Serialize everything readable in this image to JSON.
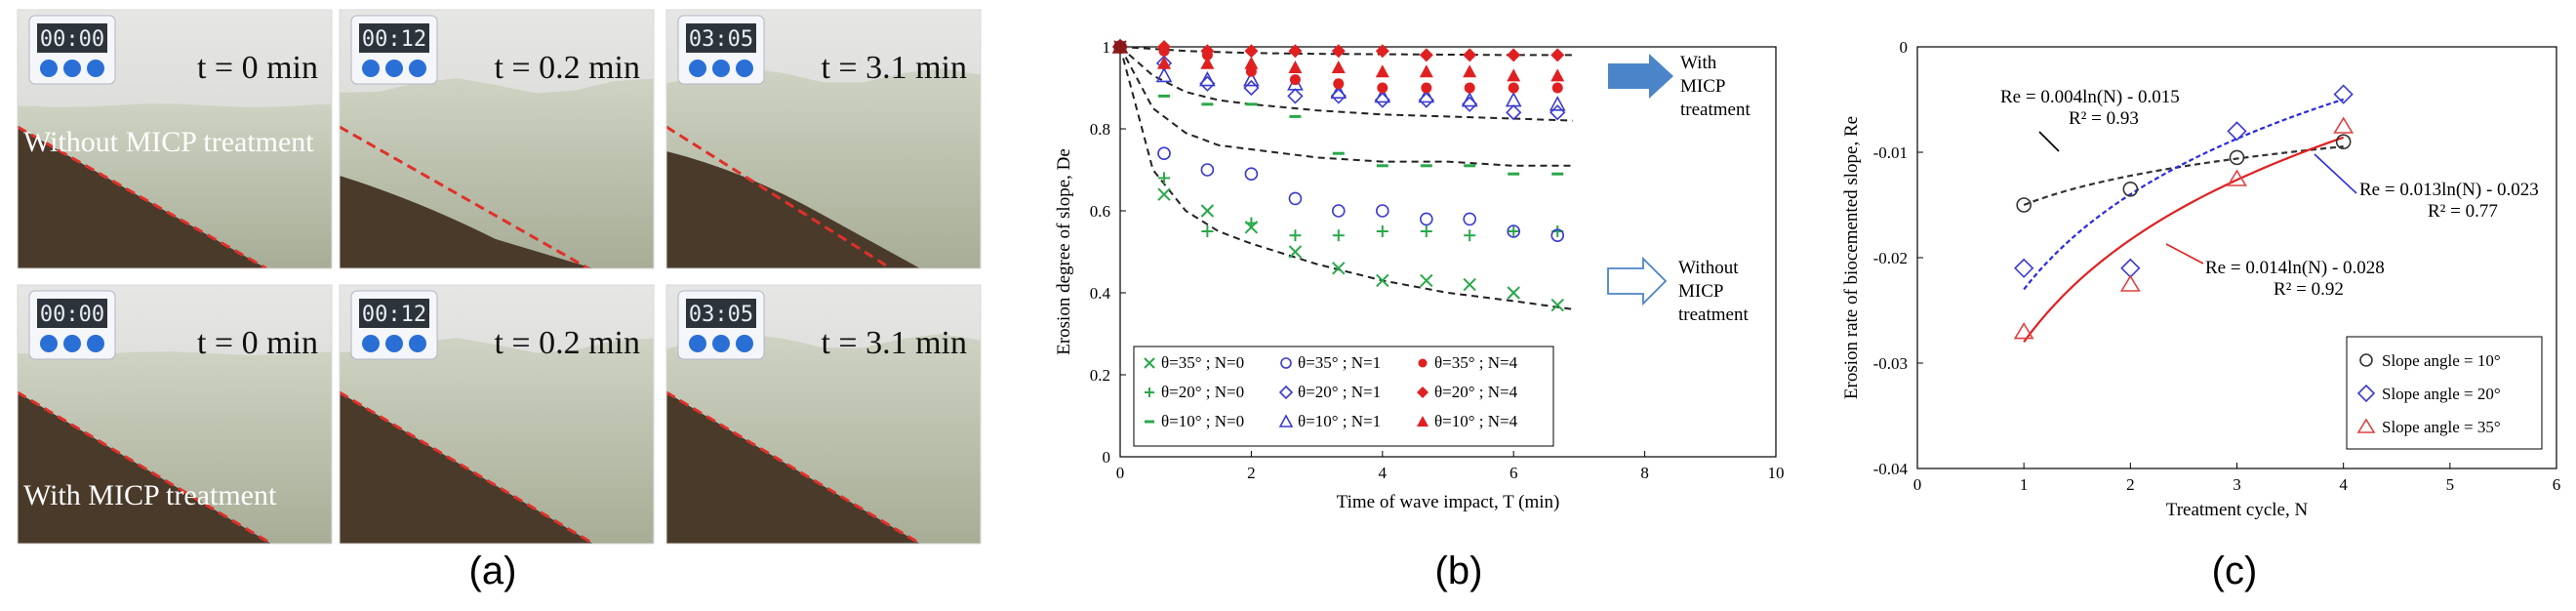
{
  "panels": {
    "a": {
      "label": "(a)"
    },
    "b": {
      "label": "(b)"
    },
    "c": {
      "label": "(c)"
    }
  },
  "photos": {
    "row_captions": [
      "Without MICP treatment",
      "With MICP treatment"
    ],
    "times": [
      "t = 0 min",
      "t = 0.2 min",
      "t = 3.1 min"
    ],
    "timer_displays": [
      "00:00",
      "00:12",
      "03:05"
    ],
    "colors": {
      "water": "#b9bfa9",
      "sediment": "#4a3a2a",
      "slope_line": "#e0302a",
      "timer": "#2a6fd6"
    }
  },
  "chart_data": [
    {
      "id": "b",
      "type": "scatter",
      "title": "",
      "xlabel": "Time of wave impact, T (min)",
      "ylabel": "Erosion degree of slope, De",
      "xlim": [
        0,
        10
      ],
      "ylim": [
        0,
        1
      ],
      "xticks": [
        0,
        2,
        4,
        6,
        8,
        10
      ],
      "yticks": [
        0,
        0.2,
        0.4,
        0.6,
        0.8,
        1
      ],
      "x": [
        0,
        0.67,
        1.33,
        2,
        2.67,
        3.33,
        4,
        4.67,
        5.33,
        6,
        6.67
      ],
      "series": [
        {
          "name": "θ=35° ; N=0",
          "marker": "x",
          "color": "#2aa84a",
          "values": [
            1,
            0.64,
            0.6,
            0.56,
            0.5,
            0.46,
            0.43,
            0.43,
            0.42,
            0.4,
            0.37
          ]
        },
        {
          "name": "θ=20° ; N=0",
          "marker": "plus",
          "color": "#2aa84a",
          "values": [
            1,
            0.68,
            0.55,
            0.57,
            0.54,
            0.54,
            0.55,
            0.55,
            0.54,
            0.55,
            0.55
          ]
        },
        {
          "name": "θ=10° ; N=0",
          "marker": "dash",
          "color": "#2aa84a",
          "values": [
            1,
            0.88,
            0.86,
            0.86,
            0.83,
            0.74,
            0.71,
            0.71,
            0.71,
            0.69,
            0.69
          ]
        },
        {
          "name": "θ=35° ; N=1",
          "marker": "circle",
          "color": "#3a3ad0",
          "values": [
            1,
            0.74,
            0.7,
            0.69,
            0.63,
            0.6,
            0.6,
            0.58,
            0.58,
            0.55,
            0.54
          ]
        },
        {
          "name": "θ=20° ; N=1",
          "marker": "diamond",
          "color": "#3a3ad0",
          "values": [
            1,
            0.96,
            0.91,
            0.9,
            0.88,
            0.88,
            0.87,
            0.87,
            0.86,
            0.84,
            0.84
          ]
        },
        {
          "name": "θ=10° ; N=1",
          "marker": "triangle",
          "color": "#3a3ad0",
          "values": [
            1,
            0.93,
            0.92,
            0.92,
            0.91,
            0.89,
            0.88,
            0.88,
            0.87,
            0.87,
            0.86
          ]
        },
        {
          "name": "θ=35° ; N=4",
          "marker": "filled-circle",
          "color": "#e02020",
          "values": [
            1,
            0.99,
            0.98,
            0.94,
            0.92,
            0.91,
            0.9,
            0.9,
            0.9,
            0.9,
            0.9
          ]
        },
        {
          "name": "θ=20° ; N=4",
          "marker": "filled-diamond",
          "color": "#e02020",
          "values": [
            1,
            1,
            0.99,
            0.99,
            0.99,
            0.99,
            0.99,
            0.98,
            0.98,
            0.98,
            0.98
          ]
        },
        {
          "name": "θ=10° ; N=4",
          "marker": "filled-triangle",
          "color": "#e02020",
          "values": [
            1,
            0.96,
            0.96,
            0.96,
            0.95,
            0.95,
            0.94,
            0.94,
            0.94,
            0.93,
            0.93
          ]
        }
      ],
      "fit_curves": [
        {
          "name": "fit-35-N0",
          "x": [
            0,
            0.5,
            1,
            1.5,
            2,
            3,
            4,
            5,
            6,
            6.9
          ],
          "y": [
            1,
            0.7,
            0.6,
            0.55,
            0.52,
            0.47,
            0.43,
            0.4,
            0.38,
            0.36
          ]
        },
        {
          "name": "fit-20-N0",
          "x": [
            0,
            0.5,
            1,
            1.5,
            2,
            3,
            4,
            5,
            6,
            6.9
          ],
          "y": [
            1,
            0.85,
            0.79,
            0.76,
            0.75,
            0.73,
            0.72,
            0.72,
            0.71,
            0.71
          ]
        },
        {
          "name": "fit-10-N0",
          "x": [
            0,
            0.5,
            1,
            1.5,
            2,
            3,
            4,
            5,
            6,
            6.9
          ],
          "y": [
            1,
            0.93,
            0.89,
            0.87,
            0.86,
            0.845,
            0.835,
            0.83,
            0.825,
            0.82
          ]
        },
        {
          "name": "fit-N4",
          "x": [
            0,
            1,
            2,
            3,
            4,
            5,
            6,
            6.9
          ],
          "y": [
            1,
            0.99,
            0.985,
            0.983,
            0.982,
            0.981,
            0.98,
            0.98
          ]
        }
      ],
      "annotations": [
        {
          "lines": [
            "With",
            "MICP",
            "treatment"
          ],
          "arrow": "filled"
        },
        {
          "lines": [
            "Without",
            "MICP",
            "treatment"
          ],
          "arrow": "outline"
        }
      ],
      "legend_position": "bottom-left"
    },
    {
      "id": "c",
      "type": "scatter",
      "title": "",
      "xlabel": "Treatment cycle, N",
      "ylabel": "Erosion rate of biocemented slope, Re",
      "xlim": [
        0,
        6
      ],
      "ylim": [
        -0.04,
        0
      ],
      "xticks": [
        0,
        1,
        2,
        3,
        4,
        5,
        6
      ],
      "yticks": [
        -0.04,
        -0.03,
        -0.02,
        -0.01,
        0
      ],
      "ytick_labels": [
        "-0.04",
        "-0.03",
        "-0.02",
        "-0.01",
        "0"
      ],
      "x": [
        1,
        2,
        3,
        4
      ],
      "series": [
        {
          "name": "Slope angle = 10°",
          "marker": "circle",
          "color": "#333333",
          "values": [
            -0.015,
            -0.0135,
            -0.0105,
            -0.009
          ]
        },
        {
          "name": "Slope angle = 20°",
          "marker": "diamond",
          "color": "#3a3ad0",
          "values": [
            -0.021,
            -0.021,
            -0.008,
            -0.0045
          ]
        },
        {
          "name": "Slope angle = 35°",
          "marker": "triangle",
          "color": "#e04040",
          "values": [
            -0.027,
            -0.0225,
            -0.0125,
            -0.0075
          ]
        }
      ],
      "fits": [
        {
          "name": "fit-10",
          "a": 0.004,
          "b": -0.015,
          "color": "#333333",
          "dash": "6,4",
          "equation": "Re = 0.004ln(N) - 0.015",
          "r2": "R² = 0.93"
        },
        {
          "name": "fit-20",
          "a": 0.013,
          "b": -0.023,
          "color": "#2a2ae0",
          "dash": "5,3",
          "equation": "Re = 0.013ln(N) - 0.023",
          "r2": "R² = 0.77"
        },
        {
          "name": "fit-35",
          "a": 0.014,
          "b": -0.028,
          "color": "#e02020",
          "dash": "",
          "equation": "Re = 0.014ln(N) - 0.028",
          "r2": "R² = 0.92"
        }
      ],
      "legend_position": "bottom-right"
    }
  ]
}
